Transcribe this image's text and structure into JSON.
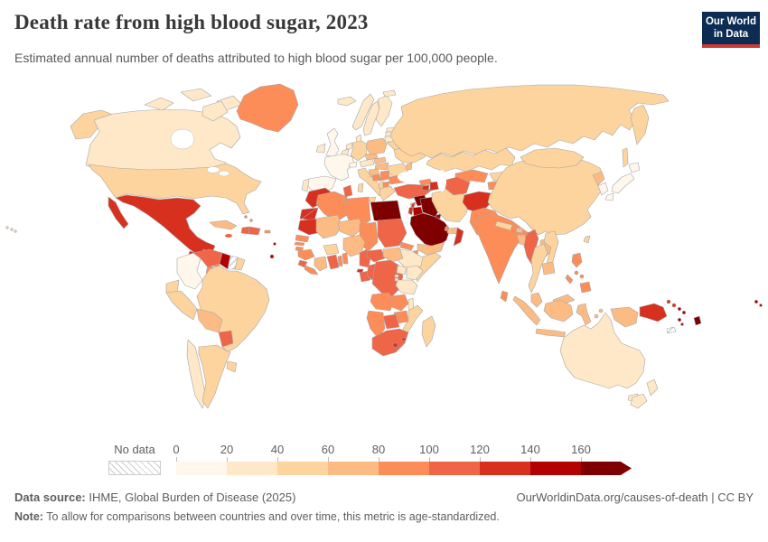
{
  "header": {
    "title": "Death rate from high blood sugar, 2023",
    "subtitle": "Estimated annual number of deaths attributed to high blood sugar per 100,000 people.",
    "logo": {
      "line1": "Our World",
      "line2": "in Data",
      "bg_color": "#0d2c54",
      "accent_color": "#cc3b33"
    }
  },
  "legend": {
    "no_data_label": "No data"
  },
  "chart_data": {
    "type": "choropleth_map",
    "title": "Death rate from high blood sugar, 2023",
    "unit": "deaths per 100,000 people (age-standardized)",
    "year": 2023,
    "bins": [
      0,
      20,
      40,
      60,
      80,
      100,
      120,
      140,
      160
    ],
    "bin_width": 20,
    "open_ended_top": true,
    "bin_colors": [
      "#fff7ec",
      "#fee8c8",
      "#fdd49e",
      "#fdbb84",
      "#fc8d59",
      "#ef6548",
      "#d7301f",
      "#b30000",
      "#7f0000"
    ],
    "no_data_pattern": "diagonal-hatch",
    "legend_position": "bottom",
    "countries": {
      "Canada": 25,
      "United States": 45,
      "Greenland": 85,
      "Mexico": 130,
      "Guatemala": 125,
      "Belize": 110,
      "Honduras": 95,
      "Nicaragua": 95,
      "Costa Rica": 75,
      "Panama": 80,
      "Cuba": 70,
      "Haiti": 115,
      "Dominican Republic": 105,
      "Jamaica": 105,
      "Puerto Rico": 90,
      "Bahamas": 95,
      "Barbados": 150,
      "Trinidad and Tobago": 155,
      "Colombia": 15,
      "Venezuela": 110,
      "Guyana": 150,
      "Suriname": null,
      "French Guiana": 45,
      "Ecuador": 45,
      "Peru": 40,
      "Brazil": 55,
      "Bolivia": 70,
      "Paraguay": 105,
      "Chile": 30,
      "Argentina": 50,
      "Uruguay": 45,
      "Iceland": 25,
      "United Kingdom": 15,
      "Ireland": 20,
      "Norway": 25,
      "Sweden": 20,
      "Finland": 35,
      "Denmark": 25,
      "Estonia": 35,
      "Latvia": 35,
      "Lithuania": 35,
      "Belarus": 45,
      "Poland": 60,
      "Germany": 50,
      "Netherlands": 20,
      "Belgium": 20,
      "France": 10,
      "Spain": 15,
      "Portugal": 35,
      "Switzerland": 15,
      "Austria": 35,
      "Czechia": 60,
      "Slovakia": 65,
      "Hungary": 65,
      "Italy": 45,
      "Croatia": 60,
      "Bosnia and Herzegovina": 85,
      "Serbia": 90,
      "Albania": 55,
      "North Macedonia": 95,
      "Greece": 45,
      "Bulgaria": 80,
      "Romania": 55,
      "Moldova": 65,
      "Ukraine": 45,
      "Russia": 50,
      "Morocco": 130,
      "Western Sahara": 125,
      "Algeria": 90,
      "Tunisia": 105,
      "Libya": 95,
      "Egypt": 185,
      "Mauritania": 130,
      "Mali": 70,
      "Niger": 70,
      "Chad": 90,
      "Sudan": 105,
      "Eritrea": 80,
      "Djibouti": 95,
      "Ethiopia": 30,
      "Somalia": 40,
      "Senegal": 90,
      "Gambia": 85,
      "Guinea-Bissau": 90,
      "Guinea": 85,
      "Sierra Leone": 100,
      "Liberia": 90,
      "Ivory Coast": 65,
      "Burkina Faso": 50,
      "Ghana": 105,
      "Togo": 85,
      "Benin": 85,
      "Nigeria": 65,
      "Cameroon": 100,
      "Central African Republic": 105,
      "South Sudan": 70,
      "Democratic Republic of Congo": 105,
      "Congo": 110,
      "Gabon": 110,
      "Equatorial Guinea": 130,
      "Uganda": 30,
      "Kenya": 25,
      "Rwanda": 30,
      "Burundi": 35,
      "Tanzania": 30,
      "Angola": 90,
      "Zambia": 85,
      "Malawi": 30,
      "Mozambique": 45,
      "Zimbabwe": 85,
      "Botswana": 110,
      "Namibia": 95,
      "South Africa": 110,
      "Lesotho": 125,
      "Eswatini": 130,
      "Madagascar": 40,
      "Turkey": 105,
      "Cyprus": 60,
      "Syria": 175,
      "Lebanon": 120,
      "Israel": 120,
      "Jordan": 150,
      "Iraq": 170,
      "Saudi Arabia": 190,
      "Kuwait": 150,
      "Qatar": 95,
      "United Arab Emirates": 60,
      "Oman": 135,
      "Yemen": 75,
      "Iran": 45,
      "Georgia": 85,
      "Armenia": 125,
      "Azerbaijan": 125,
      "Kazakhstan": 45,
      "Turkmenistan": 115,
      "Uzbekistan": 95,
      "Kyrgyzstan": 55,
      "Tajikistan": 90,
      "Afghanistan": 130,
      "Pakistan": 95,
      "India": 90,
      "Nepal": 55,
      "Bhutan": 65,
      "Bangladesh": 75,
      "Sri Lanka": 95,
      "Myanmar": 110,
      "Thailand": 45,
      "Laos": 65,
      "Vietnam": 45,
      "Cambodia": 70,
      "Malaysia": 75,
      "Indonesia": 75,
      "Philippines": 90,
      "China": 45,
      "Mongolia": 55,
      "North Korea": 65,
      "South Korea": 10,
      "Japan": 10,
      "Taiwan": 45,
      "Papua New Guinea": 135,
      "Solomon Islands": 155,
      "Vanuatu": 150,
      "Fiji": 165,
      "New Caledonia": null,
      "Samoa": 150,
      "Australia": 20,
      "New Zealand": 25
    }
  },
  "footer": {
    "datasource_label": "Data source:",
    "datasource": "IHME, Global Burden of Disease (2025)",
    "link": "OurWorldinData.org/causes-of-death | CC BY",
    "note_label": "Note:",
    "note": "To allow for comparisons between countries and over time, this metric is age-standardized."
  }
}
